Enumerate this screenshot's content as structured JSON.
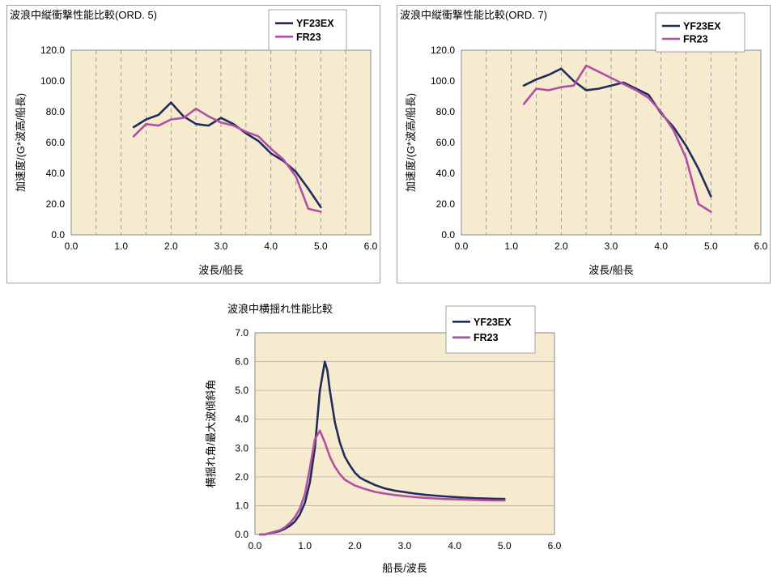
{
  "colors": {
    "series1": "#1f2d5c",
    "series2": "#b24fa3",
    "plot_bg": "#f6ebcf",
    "grid": "#8a8a8a",
    "border": "#a0a0a0"
  },
  "chart_data": [
    {
      "type": "line",
      "title": "波浪中縦衝撃性能比較(ORD. 5)",
      "xlabel": "波長/船長",
      "ylabel": "加速度/(G*波高/船長)",
      "xlim": [
        0,
        6
      ],
      "ylim": [
        0,
        120
      ],
      "x_ticks": [
        "0.0",
        "1.0",
        "2.0",
        "3.0",
        "4.0",
        "5.0",
        "6.0"
      ],
      "y_ticks": [
        "0.0",
        "20.0",
        "40.0",
        "60.0",
        "80.0",
        "100.0",
        "120.0"
      ],
      "grid": "vertical dashed",
      "legend_position": "top-right",
      "series": [
        {
          "name": "YF23EX",
          "x": [
            1.25,
            1.5,
            1.75,
            2.0,
            2.25,
            2.5,
            2.75,
            3.0,
            3.25,
            3.5,
            3.75,
            4.0,
            4.25,
            4.5,
            4.75,
            5.0
          ],
          "y": [
            70,
            75,
            78,
            86,
            77,
            72,
            71,
            76,
            72,
            66,
            61,
            53,
            48,
            41,
            30,
            18
          ]
        },
        {
          "name": "FR23",
          "x": [
            1.25,
            1.5,
            1.75,
            2.0,
            2.25,
            2.5,
            2.75,
            3.0,
            3.25,
            3.5,
            3.75,
            4.0,
            4.25,
            4.5,
            4.75,
            5.0
          ],
          "y": [
            64,
            72,
            71,
            75,
            76,
            82,
            77,
            73,
            71,
            67,
            64,
            56,
            49,
            38,
            17,
            15
          ]
        }
      ]
    },
    {
      "type": "line",
      "title": "波浪中縦衝撃性能比較(ORD. 7)",
      "xlabel": "波長/船長",
      "ylabel": "加速度/(G*波高/船長)",
      "xlim": [
        0,
        6
      ],
      "ylim": [
        0,
        120
      ],
      "x_ticks": [
        "0.0",
        "1.0",
        "2.0",
        "3.0",
        "4.0",
        "5.0",
        "6.0"
      ],
      "y_ticks": [
        "0.0",
        "20.0",
        "40.0",
        "60.0",
        "80.0",
        "100.0",
        "120.0"
      ],
      "grid": "vertical dashed",
      "legend_position": "top-right",
      "series": [
        {
          "name": "YF23EX",
          "x": [
            1.25,
            1.5,
            1.75,
            2.0,
            2.25,
            2.5,
            2.75,
            3.0,
            3.25,
            3.5,
            3.75,
            4.0,
            4.25,
            4.5,
            4.75,
            5.0
          ],
          "y": [
            97,
            101,
            104,
            108,
            100,
            94,
            95,
            97,
            99,
            95,
            91,
            79,
            70,
            58,
            43,
            25
          ]
        },
        {
          "name": "FR23",
          "x": [
            1.25,
            1.5,
            1.75,
            2.0,
            2.25,
            2.5,
            2.75,
            3.0,
            3.25,
            3.5,
            3.75,
            4.0,
            4.25,
            4.5,
            4.75,
            5.0
          ],
          "y": [
            85,
            95,
            94,
            96,
            97,
            110,
            106,
            102,
            98,
            94,
            89,
            80,
            68,
            50,
            20,
            15
          ]
        }
      ]
    },
    {
      "type": "line",
      "title": "波浪中横揺れ性能比較",
      "xlabel": "船長/波長",
      "ylabel": "横揺れ角/最大波傾斜角",
      "xlim": [
        0,
        6
      ],
      "ylim": [
        0,
        7
      ],
      "x_ticks": [
        "0.0",
        "1.0",
        "2.0",
        "3.0",
        "4.0",
        "5.0",
        "6.0"
      ],
      "y_ticks": [
        "0.0",
        "1.0",
        "2.0",
        "3.0",
        "4.0",
        "5.0",
        "6.0",
        "7.0"
      ],
      "grid": "horizontal solid",
      "legend_position": "top-right",
      "series": [
        {
          "name": "YF23EX",
          "x": [
            0.1,
            0.2,
            0.3,
            0.4,
            0.5,
            0.6,
            0.7,
            0.8,
            0.9,
            1.0,
            1.1,
            1.2,
            1.3,
            1.4,
            1.45,
            1.5,
            1.6,
            1.7,
            1.8,
            1.9,
            2.0,
            2.1,
            2.2,
            2.4,
            2.6,
            2.8,
            3.0,
            3.2,
            3.4,
            3.6,
            3.8,
            4.0,
            4.2,
            4.4,
            4.6,
            4.8,
            5.0
          ],
          "y": [
            0.0,
            0.0,
            0.05,
            0.08,
            0.12,
            0.2,
            0.3,
            0.45,
            0.7,
            1.1,
            1.8,
            3.0,
            5.0,
            6.0,
            5.7,
            5.0,
            3.9,
            3.2,
            2.7,
            2.4,
            2.15,
            1.98,
            1.88,
            1.72,
            1.6,
            1.52,
            1.47,
            1.42,
            1.38,
            1.35,
            1.32,
            1.3,
            1.28,
            1.26,
            1.25,
            1.24,
            1.23
          ]
        },
        {
          "name": "FR23",
          "x": [
            0.1,
            0.2,
            0.3,
            0.4,
            0.5,
            0.6,
            0.7,
            0.8,
            0.9,
            1.0,
            1.1,
            1.2,
            1.3,
            1.4,
            1.5,
            1.6,
            1.7,
            1.8,
            1.9,
            2.0,
            2.2,
            2.4,
            2.6,
            2.8,
            3.0,
            3.2,
            3.4,
            3.6,
            3.8,
            4.0,
            4.2,
            4.4,
            4.6,
            4.8,
            5.0
          ],
          "y": [
            0.0,
            0.0,
            0.05,
            0.1,
            0.15,
            0.25,
            0.4,
            0.6,
            0.9,
            1.4,
            2.3,
            3.3,
            3.6,
            3.2,
            2.7,
            2.35,
            2.1,
            1.9,
            1.8,
            1.7,
            1.58,
            1.48,
            1.42,
            1.37,
            1.33,
            1.3,
            1.27,
            1.25,
            1.23,
            1.22,
            1.21,
            1.2,
            1.19,
            1.18,
            1.18
          ]
        }
      ]
    }
  ]
}
